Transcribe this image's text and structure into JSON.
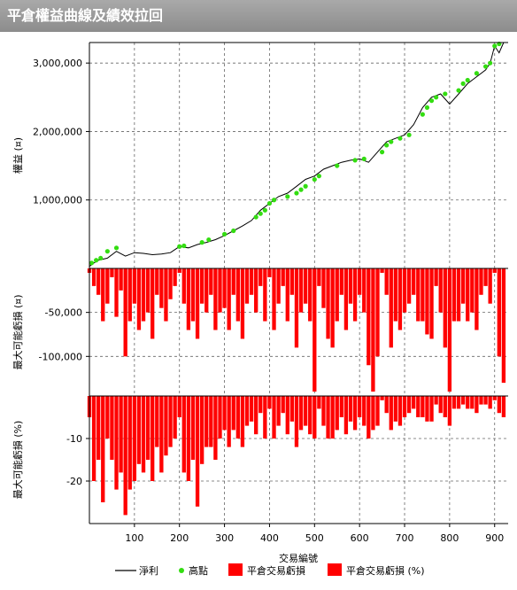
{
  "window": {
    "title": "平倉權益曲線及績效拉回"
  },
  "chart_data": [
    {
      "type": "line",
      "panel": "equity",
      "ylabel": "權益 (¤)",
      "ylim": [
        0,
        3300000
      ],
      "y_ticks": [
        1000000,
        2000000,
        3000000
      ],
      "y_tick_labels": [
        "1,000,000",
        "2,000,000",
        "3,000,000"
      ],
      "grid": true,
      "series": [
        {
          "name": "淨利",
          "color": "#000000",
          "x": [
            0,
            10,
            20,
            40,
            60,
            80,
            100,
            120,
            140,
            160,
            180,
            200,
            220,
            240,
            260,
            280,
            300,
            320,
            340,
            360,
            380,
            400,
            420,
            440,
            460,
            480,
            500,
            520,
            540,
            560,
            580,
            600,
            620,
            640,
            660,
            680,
            700,
            720,
            740,
            760,
            780,
            800,
            820,
            840,
            860,
            880,
            890,
            900,
            910,
            920
          ],
          "y": [
            30000,
            80000,
            120000,
            150000,
            250000,
            180000,
            230000,
            220000,
            200000,
            210000,
            230000,
            320000,
            300000,
            350000,
            380000,
            420000,
            480000,
            550000,
            620000,
            700000,
            850000,
            950000,
            1050000,
            1100000,
            1200000,
            1300000,
            1350000,
            1450000,
            1500000,
            1550000,
            1580000,
            1600000,
            1550000,
            1700000,
            1850000,
            1900000,
            1950000,
            2100000,
            2350000,
            2500000,
            2550000,
            2400000,
            2550000,
            2700000,
            2800000,
            2900000,
            3000000,
            3250000,
            3150000,
            3300000
          ]
        },
        {
          "name": "高點",
          "color": "#33dd11",
          "x": [
            5,
            15,
            25,
            40,
            60,
            200,
            210,
            250,
            265,
            300,
            320,
            370,
            380,
            390,
            400,
            410,
            440,
            460,
            470,
            480,
            500,
            510,
            550,
            590,
            610,
            650,
            660,
            670,
            690,
            710,
            740,
            750,
            760,
            770,
            790,
            820,
            830,
            840,
            860,
            880,
            890,
            900,
            910
          ],
          "y": [
            80000,
            120000,
            150000,
            250000,
            300000,
            320000,
            330000,
            380000,
            420000,
            500000,
            550000,
            750000,
            800000,
            850000,
            950000,
            1000000,
            1050000,
            1100000,
            1150000,
            1200000,
            1300000,
            1350000,
            1500000,
            1580000,
            1600000,
            1700000,
            1800000,
            1850000,
            1900000,
            1950000,
            2250000,
            2350000,
            2450000,
            2500000,
            2550000,
            2600000,
            2700000,
            2750000,
            2850000,
            2950000,
            3000000,
            3250000,
            3280000
          ]
        }
      ]
    },
    {
      "type": "area",
      "panel": "drawdown_abs",
      "ylabel": "最大可能虧損 (¤)",
      "ylim": [
        -145000,
        0
      ],
      "y_ticks": [
        -50000,
        -100000
      ],
      "y_tick_labels": [
        "-50,000",
        "-100,000"
      ],
      "grid": true,
      "series": [
        {
          "name": "平倉交易虧損",
          "color": "#ff0000",
          "x": [
            0,
            10,
            20,
            30,
            40,
            50,
            60,
            70,
            80,
            90,
            100,
            110,
            120,
            130,
            140,
            150,
            160,
            170,
            180,
            190,
            200,
            210,
            220,
            230,
            240,
            250,
            260,
            270,
            280,
            290,
            300,
            310,
            320,
            330,
            340,
            350,
            360,
            370,
            380,
            390,
            400,
            410,
            420,
            430,
            440,
            450,
            460,
            470,
            480,
            490,
            500,
            510,
            520,
            530,
            540,
            550,
            560,
            570,
            580,
            590,
            600,
            610,
            620,
            630,
            640,
            650,
            660,
            670,
            680,
            690,
            700,
            710,
            720,
            730,
            740,
            750,
            760,
            770,
            780,
            790,
            800,
            810,
            820,
            830,
            840,
            850,
            860,
            870,
            880,
            890,
            900,
            910,
            920
          ],
          "y": [
            -5000,
            -20000,
            -30000,
            -60000,
            -40000,
            -10000,
            -55000,
            -25000,
            -100000,
            -60000,
            -40000,
            -70000,
            -60000,
            -50000,
            -80000,
            -30000,
            -45000,
            -60000,
            -35000,
            -20000,
            -5000,
            -40000,
            -70000,
            -60000,
            -80000,
            -40000,
            -50000,
            -30000,
            -70000,
            -50000,
            -45000,
            -70000,
            -30000,
            -60000,
            -80000,
            -40000,
            -30000,
            -50000,
            -20000,
            -60000,
            -10000,
            -70000,
            -40000,
            -20000,
            -60000,
            -30000,
            -90000,
            -50000,
            -40000,
            -60000,
            -140000,
            -20000,
            -45000,
            -80000,
            -90000,
            -60000,
            -30000,
            -70000,
            -40000,
            -60000,
            -30000,
            -50000,
            -110000,
            -140000,
            -100000,
            -5000,
            -30000,
            -90000,
            -60000,
            -70000,
            -50000,
            -40000,
            -30000,
            -60000,
            -60000,
            -75000,
            -80000,
            -20000,
            -50000,
            -90000,
            -140000,
            -60000,
            -60000,
            -40000,
            -60000,
            -50000,
            -70000,
            -30000,
            -20000,
            -40000,
            -5000,
            -100000,
            -130000
          ]
        }
      ]
    },
    {
      "type": "area",
      "panel": "drawdown_pct",
      "xlabel": "交易編號",
      "ylabel": "最大可能虧損 (%)",
      "ylim": [
        -30,
        0
      ],
      "xlim": [
        0,
        930
      ],
      "y_ticks": [
        -10,
        -20
      ],
      "y_tick_labels": [
        "-10",
        "-20"
      ],
      "x_ticks": [
        100,
        200,
        300,
        400,
        500,
        600,
        700,
        800,
        900
      ],
      "x_tick_labels": [
        "100",
        "200",
        "300",
        "400",
        "500",
        "600",
        "700",
        "800",
        "900"
      ],
      "grid": true,
      "series": [
        {
          "name": "平倉交易虧損 (%)",
          "color": "#ff0000",
          "x": [
            0,
            10,
            20,
            30,
            40,
            50,
            60,
            70,
            80,
            90,
            100,
            110,
            120,
            130,
            140,
            150,
            160,
            170,
            180,
            190,
            200,
            210,
            220,
            230,
            240,
            250,
            260,
            270,
            280,
            290,
            300,
            310,
            320,
            330,
            340,
            350,
            360,
            370,
            380,
            390,
            400,
            410,
            420,
            430,
            440,
            450,
            460,
            470,
            480,
            490,
            500,
            510,
            520,
            530,
            540,
            550,
            560,
            570,
            580,
            590,
            600,
            610,
            620,
            630,
            640,
            650,
            660,
            670,
            680,
            690,
            700,
            710,
            720,
            730,
            740,
            750,
            760,
            770,
            780,
            790,
            800,
            810,
            820,
            830,
            840,
            850,
            860,
            870,
            880,
            890,
            900,
            910,
            920
          ],
          "y": [
            -5,
            -20,
            -15,
            -25,
            -10,
            -15,
            -22,
            -18,
            -28,
            -22,
            -20,
            -16,
            -18,
            -15,
            -20,
            -12,
            -18,
            -14,
            -12,
            -10,
            -5,
            -18,
            -20,
            -15,
            -26,
            -16,
            -12,
            -12,
            -15,
            -10,
            -8,
            -12,
            -8,
            -10,
            -12,
            -7,
            -6,
            -9,
            -4,
            -10,
            -3,
            -10,
            -7,
            -4,
            -9,
            -6,
            -12,
            -8,
            -7,
            -9,
            -10,
            -3,
            -7,
            -10,
            -10,
            -8,
            -5,
            -9,
            -6,
            -8,
            -5,
            -7,
            -10,
            -8,
            -7,
            -1,
            -4,
            -8,
            -6,
            -7,
            -5,
            -4,
            -3,
            -5,
            -5,
            -6,
            -6,
            -2,
            -4,
            -5,
            -7,
            -3,
            -3,
            -2,
            -3,
            -3,
            -4,
            -2,
            -2,
            -3,
            -1,
            -4,
            -5
          ]
        }
      ]
    }
  ],
  "legend": {
    "items": [
      {
        "label": "淨利",
        "kind": "line",
        "color": "#000000"
      },
      {
        "label": "高點",
        "kind": "dot",
        "color": "#33dd11"
      },
      {
        "label": "平倉交易虧損",
        "kind": "box",
        "color": "#ff0000"
      },
      {
        "label": "平倉交易虧損 (%)",
        "kind": "box",
        "color": "#ff0000"
      }
    ]
  }
}
